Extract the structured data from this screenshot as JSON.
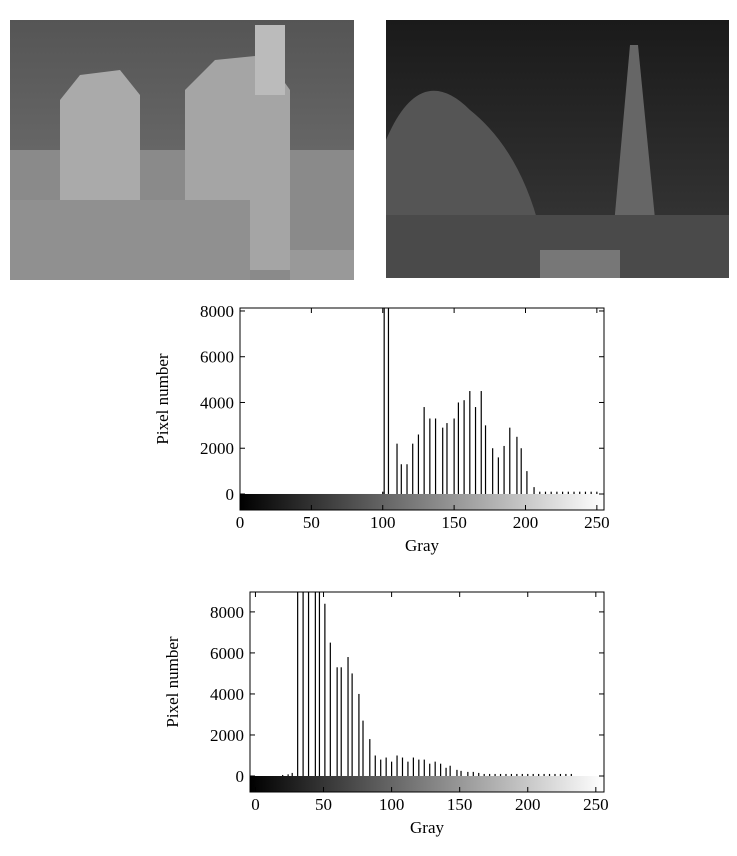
{
  "chart_data": [
    {
      "type": "stem",
      "xlabel": "Gray",
      "ylabel": "Pixel number",
      "color": "#000000",
      "x": [
        100,
        101,
        104,
        110,
        113,
        117,
        121,
        125,
        129,
        133,
        137,
        142,
        145,
        150,
        153,
        157,
        161,
        165,
        169,
        172,
        177,
        181,
        185,
        189,
        194,
        197,
        201,
        206,
        210,
        214,
        218,
        222,
        226,
        230,
        234,
        238,
        242,
        246,
        250
      ],
      "values": [
        100,
        8200,
        8200,
        2200,
        1300,
        1300,
        2200,
        2600,
        3800,
        3300,
        3300,
        2900,
        3100,
        3300,
        4000,
        4100,
        4500,
        3800,
        4500,
        3000,
        2000,
        1600,
        2100,
        2900,
        2500,
        2000,
        1000,
        300,
        100,
        100,
        100,
        100,
        100,
        100,
        100,
        100,
        100,
        100,
        100
      ],
      "xlim": [
        0,
        255
      ],
      "ylim": [
        -700,
        8130
      ],
      "xticks": [
        0,
        50,
        100,
        150,
        200,
        250
      ],
      "yticks": [
        0,
        2000,
        4000,
        6000,
        8000
      ]
    },
    {
      "type": "stem",
      "xlabel": "Gray",
      "ylabel": "Pixel number",
      "color": "#000000",
      "x": [
        20,
        24,
        27,
        31,
        35,
        39,
        44,
        47,
        51,
        55,
        60,
        63,
        68,
        71,
        76,
        79,
        84,
        88,
        92,
        96,
        100,
        104,
        108,
        112,
        116,
        120,
        124,
        128,
        132,
        136,
        140,
        143,
        148,
        151,
        156,
        160,
        164,
        168,
        172,
        176,
        180,
        184,
        188,
        192,
        196,
        200,
        204,
        208,
        212,
        216,
        220,
        224,
        228,
        232
      ],
      "values": [
        50,
        80,
        150,
        9000,
        9000,
        9000,
        9000,
        9000,
        8400,
        6500,
        5300,
        5300,
        5800,
        5000,
        4000,
        2700,
        1800,
        1000,
        800,
        900,
        700,
        1000,
        900,
        700,
        900,
        800,
        800,
        600,
        700,
        600,
        400,
        500,
        300,
        250,
        200,
        200,
        150,
        100,
        100,
        100,
        100,
        100,
        100,
        100,
        100,
        100,
        100,
        100,
        100,
        100,
        100,
        100,
        100,
        100
      ],
      "xlim": [
        -4,
        256
      ],
      "ylim": [
        -780,
        8970
      ],
      "xticks": [
        0,
        50,
        100,
        150,
        200,
        250
      ],
      "yticks": [
        0,
        2000,
        4000,
        6000,
        8000
      ]
    }
  ]
}
